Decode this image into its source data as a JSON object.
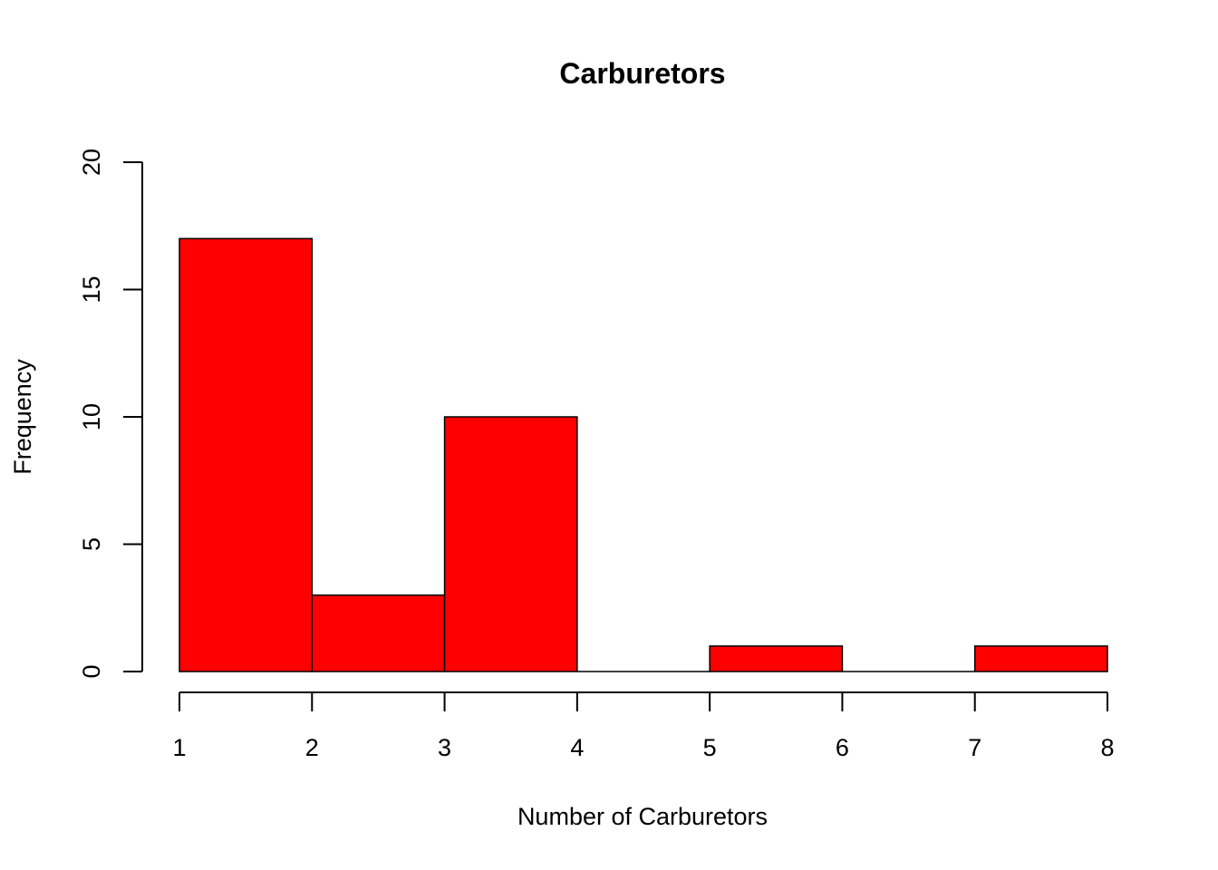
{
  "chart_data": {
    "type": "bar",
    "title": "Carburetors",
    "xlabel": "Number of Carburetors",
    "ylabel": "Frequency",
    "bins": [
      [
        1,
        2
      ],
      [
        2,
        3
      ],
      [
        3,
        4
      ],
      [
        4,
        5
      ],
      [
        5,
        6
      ],
      [
        6,
        7
      ],
      [
        7,
        8
      ]
    ],
    "values": [
      17,
      3,
      10,
      0,
      1,
      0,
      1
    ],
    "xlim": [
      1,
      8
    ],
    "ylim": [
      0,
      20
    ],
    "x_ticks": [
      "1",
      "2",
      "3",
      "4",
      "5",
      "6",
      "7",
      "8"
    ],
    "y_ticks": [
      "0",
      "5",
      "10",
      "15",
      "20"
    ],
    "bar_color": "#ff0000",
    "grid": false
  }
}
